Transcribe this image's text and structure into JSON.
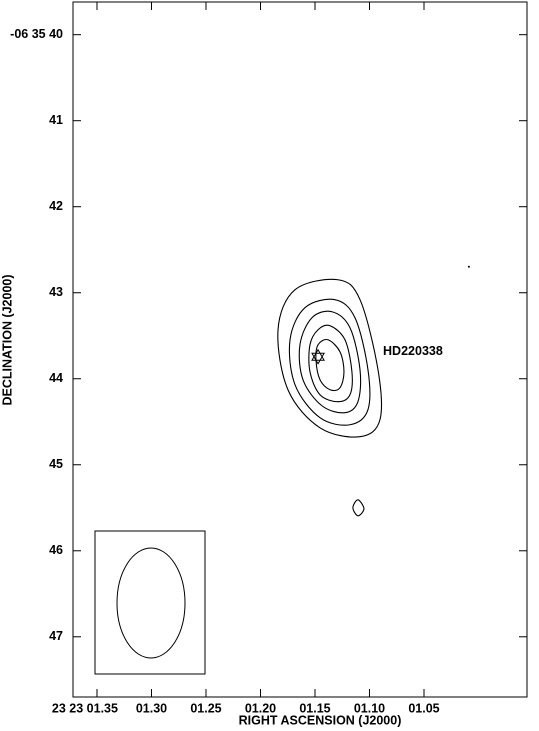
{
  "chart_data": {
    "type": "contour",
    "xlabel": "RIGHT ASCENSION (J2000)",
    "ylabel": "DECLINATION (J2000)",
    "xlim": [
      1.372,
      0.9555
    ],
    "ylim": [
      47.7,
      39.62
    ],
    "xticks": [
      {
        "value": 1.35,
        "label": "23 23 01.35"
      },
      {
        "value": 1.3,
        "label": "01.30"
      },
      {
        "value": 1.25,
        "label": "01.25"
      },
      {
        "value": 1.2,
        "label": "01.20"
      },
      {
        "value": 1.15,
        "label": "01.15"
      },
      {
        "value": 1.1,
        "label": "01.10"
      },
      {
        "value": 1.05,
        "label": "01.05"
      }
    ],
    "yticks": [
      {
        "value": 40,
        "label": "-06 35 40"
      },
      41,
      42,
      43,
      44,
      45,
      46,
      47
    ],
    "contours": [
      {
        "x": [
          1.1289,
          1.1087,
          1.0922,
          1.0904,
          1.1087,
          1.1454,
          1.1748,
          1.1839,
          1.1683
        ],
        "y": [
          42.849,
          43.081,
          43.895,
          44.477,
          44.674,
          44.57,
          44.128,
          43.43,
          42.965
        ]
      },
      {
        "x": [
          1.1317,
          1.1133,
          1.1014,
          1.1014,
          1.1179,
          1.1454,
          1.1683,
          1.1729,
          1.1592
        ],
        "y": [
          43.081,
          43.291,
          43.895,
          44.36,
          44.535,
          44.453,
          44.07,
          43.547,
          43.174
        ]
      },
      {
        "x": [
          1.1344,
          1.1179,
          1.1087,
          1.1106,
          1.1225,
          1.1436,
          1.161,
          1.1638,
          1.1528
        ],
        "y": [
          43.221,
          43.407,
          43.895,
          44.267,
          44.395,
          44.314,
          44.012,
          43.605,
          43.291
        ]
      },
      {
        "x": [
          1.1362,
          1.1225,
          1.1161,
          1.1179,
          1.1289,
          1.1454,
          1.1546,
          1.1546,
          1.1472
        ],
        "y": [
          43.384,
          43.547,
          43.919,
          44.186,
          44.267,
          44.186,
          43.919,
          43.605,
          43.43
        ]
      },
      {
        "x": [
          1.1381,
          1.1271,
          1.1234,
          1.1271,
          1.1362,
          1.1454,
          1.1491,
          1.1472
        ],
        "y": [
          43.547,
          43.686,
          43.919,
          44.105,
          44.128,
          44.012,
          43.779,
          43.605
        ]
      },
      {
        "x": [
          1.1152,
          1.1106,
          1.1051,
          1.1106
        ],
        "y": [
          45.5,
          45.407,
          45.512,
          45.593
        ]
      }
    ],
    "spot": {
      "x": 1.0088,
      "y": 42.698
    },
    "star": {
      "x": 1.1472,
      "y": 43.744
    },
    "annotation": "HD220338"
  }
}
